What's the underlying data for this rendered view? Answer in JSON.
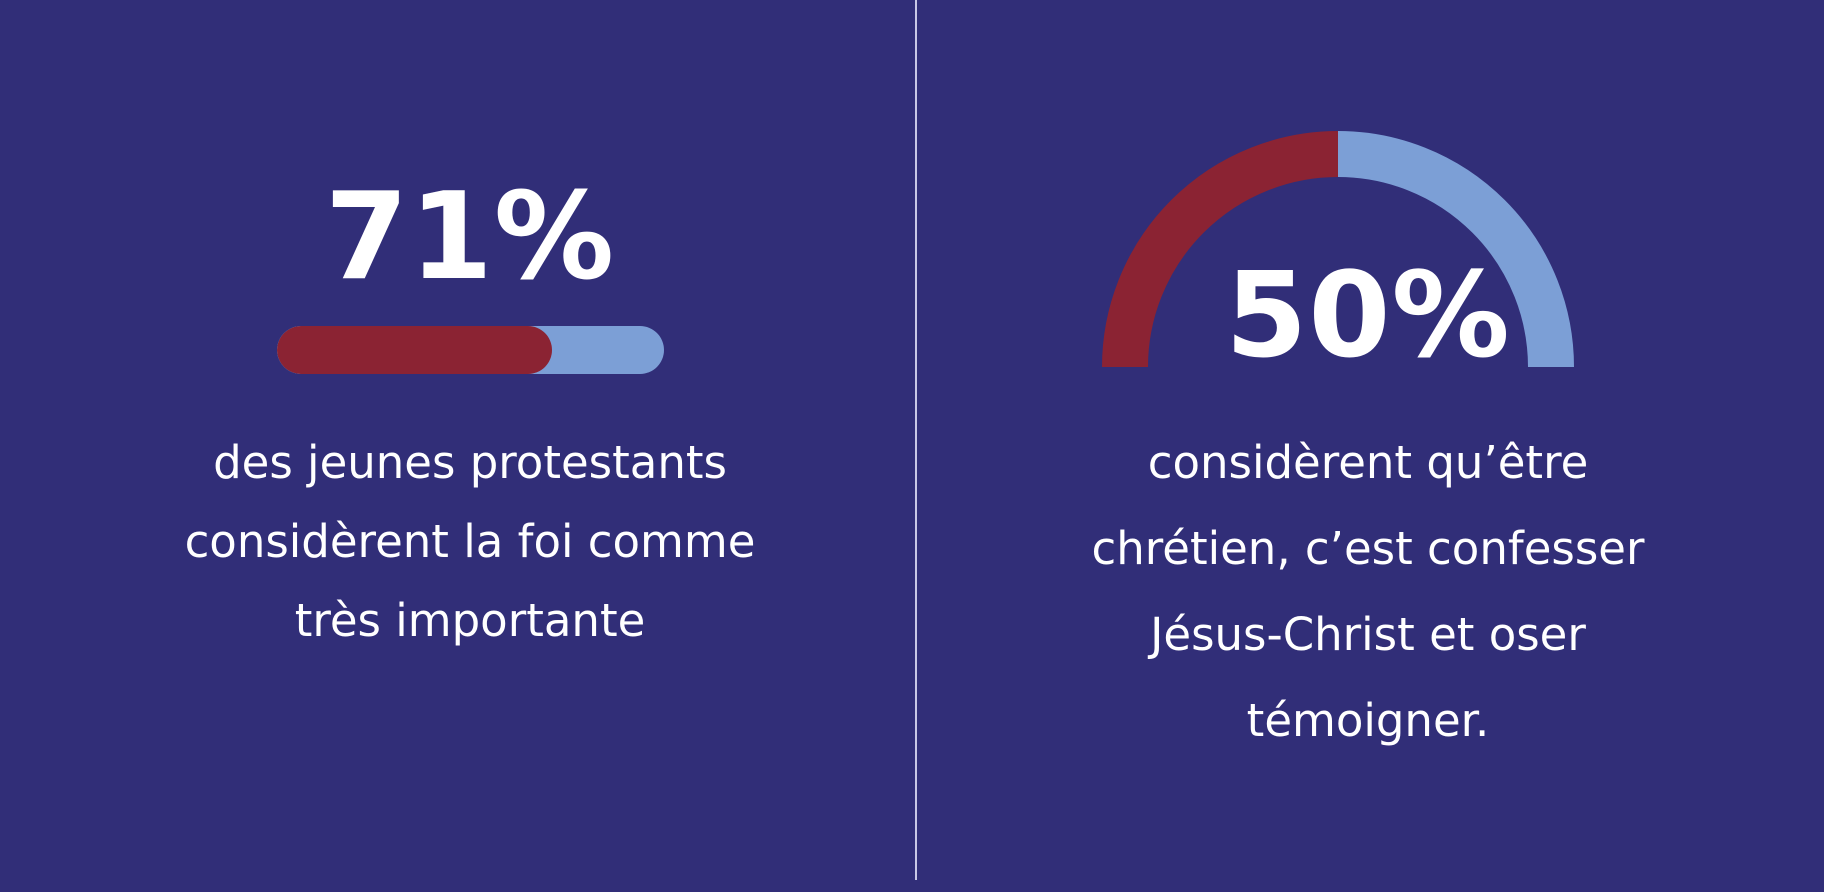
{
  "chart_data": [
    {
      "type": "progress-bar",
      "value_label": "71%",
      "value": 71,
      "range": [
        0,
        100
      ],
      "caption_lines": [
        "des jeunes protestants",
        "considèrent la foi comme",
        "très importante"
      ]
    },
    {
      "type": "gauge",
      "value_label": "50%",
      "value": 50,
      "range": [
        0,
        100
      ],
      "caption_lines": [
        "considèrent qu’être",
        "chrétien, c’est confesser",
        "Jésus-Christ et oser",
        "témoigner."
      ]
    }
  ],
  "colors": {
    "background": "#312e78",
    "fill": "#8b2333",
    "track": "#7c9fd6",
    "text": "#ffffff",
    "divider": "#c9c8e6"
  }
}
